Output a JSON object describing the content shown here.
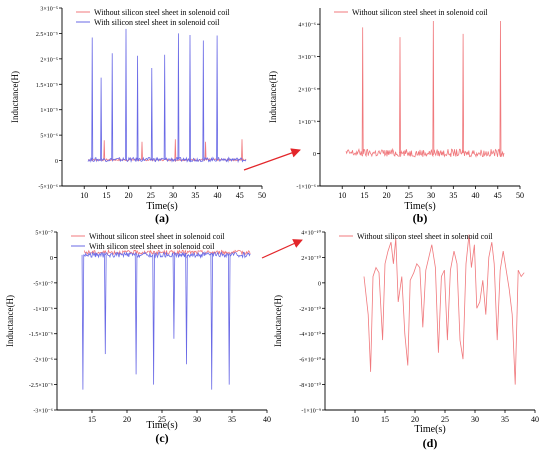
{
  "figure": {
    "arrows_color": "#e3262a",
    "colors": {
      "red": "#f0787c",
      "blue": "#6a6ae6",
      "axis": "#000000"
    }
  },
  "chart_data": [
    {
      "id": "a",
      "type": "line",
      "panel_label": "(a)",
      "xlabel": "Time(s)",
      "ylabel": "Inductance(H)",
      "xlim": [
        5,
        50
      ],
      "ylim": [
        -5e-06,
        3e-05
      ],
      "xticks": [
        10,
        15,
        20,
        25,
        30,
        35,
        40,
        45,
        50
      ],
      "yticks": [
        -5e-06,
        0,
        5e-06,
        1e-05,
        1.5e-05,
        2e-05,
        2.5e-05,
        3e-05
      ],
      "ytick_labels": [
        "-5×10⁻⁶",
        "0",
        "5×10⁻⁶",
        "1×10⁻⁵",
        "1.5×10⁻⁵",
        "2×10⁻⁵",
        "2.5×10⁻⁵",
        "3×10⁻⁵"
      ],
      "legend_position": "top-left",
      "series": [
        {
          "name": "Without silicon steel sheet in solenoid coil",
          "color": "#f0787c",
          "baseline": 1.5e-07,
          "noise": 2e-07,
          "peaks": [
            [
              14.5,
              4e-06
            ],
            [
              23.0,
              3.7e-06
            ],
            [
              30.5,
              4.2e-06
            ],
            [
              37.3,
              3.7e-06
            ],
            [
              45.5,
              4.2e-06
            ]
          ]
        },
        {
          "name": "With silicon steel sheet in solenoid coil",
          "color": "#6a6ae6",
          "baseline": 2e-07,
          "noise": 4e-07,
          "peaks": [
            [
              11.8,
              2.42e-05
            ],
            [
              13.8,
              1.63e-05
            ],
            [
              16.3,
              2.11e-05
            ],
            [
              19.4,
              2.59e-05
            ],
            [
              22.0,
              2.06e-05
            ],
            [
              25.2,
              1.82e-05
            ],
            [
              28.1,
              2.08e-05
            ],
            [
              31.2,
              2.5e-05
            ],
            [
              33.8,
              2.47e-05
            ],
            [
              36.8,
              2.36e-05
            ],
            [
              39.9,
              2.46e-05
            ]
          ]
        }
      ]
    },
    {
      "id": "b",
      "type": "line",
      "panel_label": "(b)",
      "xlabel": "Time(s)",
      "ylabel": "Inductance(H)",
      "xlim": [
        5,
        50
      ],
      "ylim": [
        -1e-06,
        4.5e-06
      ],
      "xticks": [
        10,
        15,
        20,
        25,
        30,
        35,
        40,
        45,
        50
      ],
      "yticks": [
        -1e-06,
        0,
        1e-06,
        2e-06,
        3e-06,
        4e-06
      ],
      "ytick_labels": [
        "-1×10⁻⁶",
        "0",
        "1×10⁻⁶",
        "2×10⁻⁶",
        "3×10⁻⁶",
        "4×10⁻⁶"
      ],
      "legend_position": "top-left",
      "series": [
        {
          "name": "Without silicon steel sheet in solenoid coil",
          "color": "#f0787c",
          "baseline": 2e-08,
          "noise": 1.2e-07,
          "peaks": [
            [
              14.6,
              3.9e-06
            ],
            [
              23.0,
              3.6e-06
            ],
            [
              30.5,
              4.1e-06
            ],
            [
              37.2,
              3.7e-06
            ],
            [
              45.6,
              4.1e-06
            ]
          ]
        }
      ]
    },
    {
      "id": "c",
      "type": "line",
      "panel_label": "(c)",
      "xlabel": "Time(s)",
      "ylabel": "Inductance(H)",
      "xlim": [
        10,
        40
      ],
      "ylim": [
        -3e-06,
        5e-07
      ],
      "xticks": [
        15,
        20,
        25,
        30,
        35,
        40
      ],
      "yticks": [
        -3e-06,
        -2.5e-06,
        -2e-06,
        -1.5e-06,
        -1e-06,
        -5e-07,
        0,
        5e-07
      ],
      "ytick_labels": [
        "-3×10⁻⁶",
        "-2.5×10⁻⁶",
        "-2×10⁻⁶",
        "-1.5×10⁻⁶",
        "-1×10⁻⁶",
        "-5×10⁻⁷",
        "0",
        "5×10⁻⁷"
      ],
      "legend_position": "top-left",
      "series": [
        {
          "name": "Without silicon steel sheet in solenoid coil",
          "color": "#f0787c",
          "baseline": 1e-07,
          "noise": 4e-08,
          "peaks": []
        },
        {
          "name": "With silicon steel sheet in solenoid coil",
          "color": "#6a6ae6",
          "baseline": 5e-08,
          "noise": 5e-08,
          "peaks": [
            [
              13.7,
              -2.6e-06
            ],
            [
              16.9,
              -1.9e-06
            ],
            [
              21.3,
              -2.3e-06
            ],
            [
              23.8,
              -2.5e-06
            ],
            [
              26.7,
              -1.6e-06
            ],
            [
              28.5,
              -2.1e-06
            ],
            [
              32.1,
              -2.6e-06
            ],
            [
              34.6,
              -2.5e-06
            ],
            [
              37.9,
              -2e-06
            ]
          ]
        }
      ]
    },
    {
      "id": "d",
      "type": "line",
      "panel_label": "(d)",
      "xlabel": "Time(s)",
      "ylabel": "Inductance(H)",
      "xlim": [
        5,
        40
      ],
      "ylim": [
        -1e-09,
        4e-10
      ],
      "xticks": [
        10,
        15,
        20,
        25,
        30,
        35,
        40
      ],
      "yticks": [
        -1e-09,
        -8e-10,
        -6e-10,
        -4e-10,
        -2e-10,
        0,
        2e-10,
        4e-10
      ],
      "ytick_labels": [
        "-1×10⁻⁹",
        "-8×10⁻¹⁰",
        "-6×10⁻¹⁰",
        "-4×10⁻¹⁰",
        "-2×10⁻¹⁰",
        "0",
        "2×10⁻¹⁰",
        "4×10⁻¹⁰"
      ],
      "legend_position": "top-left",
      "series": [
        {
          "name": "Without silicon steel sheet in solenoid coil",
          "color": "#f0787c",
          "points": [
            [
              11.5,
              5e-11
            ],
            [
              12.2,
              -2.5e-10
            ],
            [
              12.6,
              -7e-10
            ],
            [
              13.0,
              5e-11
            ],
            [
              13.5,
              1.2e-10
            ],
            [
              14.0,
              8e-11
            ],
            [
              14.6,
              -4.5e-10
            ],
            [
              15.0,
              1.5e-10
            ],
            [
              15.5,
              2.5e-10
            ],
            [
              16.0,
              3.2e-10
            ],
            [
              16.4,
              1.5e-10
            ],
            [
              16.8,
              3.5e-10
            ],
            [
              17.2,
              -1.5e-10
            ],
            [
              17.8,
              5e-11
            ],
            [
              18.3,
              -4e-10
            ],
            [
              18.8,
              -6.5e-10
            ],
            [
              19.2,
              2e-11
            ],
            [
              19.8,
              8e-11
            ],
            [
              20.3,
              1.5e-10
            ],
            [
              20.8,
              1.2e-10
            ],
            [
              21.3,
              -3.5e-10
            ],
            [
              21.8,
              1e-10
            ],
            [
              22.3,
              2e-10
            ],
            [
              22.8,
              3e-10
            ],
            [
              23.4,
              1.2e-10
            ],
            [
              23.9,
              -5.5e-10
            ],
            [
              24.4,
              5e-11
            ],
            [
              24.9,
              1e-10
            ],
            [
              25.4,
              -4.5e-10
            ],
            [
              25.9,
              1e-10
            ],
            [
              26.5,
              2.5e-10
            ],
            [
              27.0,
              1.5e-10
            ],
            [
              27.5,
              -4.5e-10
            ],
            [
              28.0,
              -6e-10
            ],
            [
              28.5,
              1.5e-10
            ],
            [
              29.0,
              3.8e-10
            ],
            [
              29.4,
              1.2e-10
            ],
            [
              29.9,
              3e-10
            ],
            [
              30.3,
              -2e-10
            ],
            [
              30.8,
              -1.5e-10
            ],
            [
              31.3,
              2e-11
            ],
            [
              31.8,
              -2.5e-10
            ],
            [
              32.3,
              2e-10
            ],
            [
              32.8,
              3.2e-10
            ],
            [
              33.2,
              1.5e-10
            ],
            [
              33.7,
              -4.5e-10
            ],
            [
              34.2,
              1e-10
            ],
            [
              34.7,
              2.5e-10
            ],
            [
              35.2,
              1e-10
            ],
            [
              35.7,
              -5e-11
            ],
            [
              36.2,
              -2.5e-10
            ],
            [
              36.7,
              -8e-10
            ],
            [
              37.2,
              1e-10
            ],
            [
              37.7,
              5e-11
            ],
            [
              38.2,
              8e-11
            ]
          ]
        }
      ]
    }
  ]
}
